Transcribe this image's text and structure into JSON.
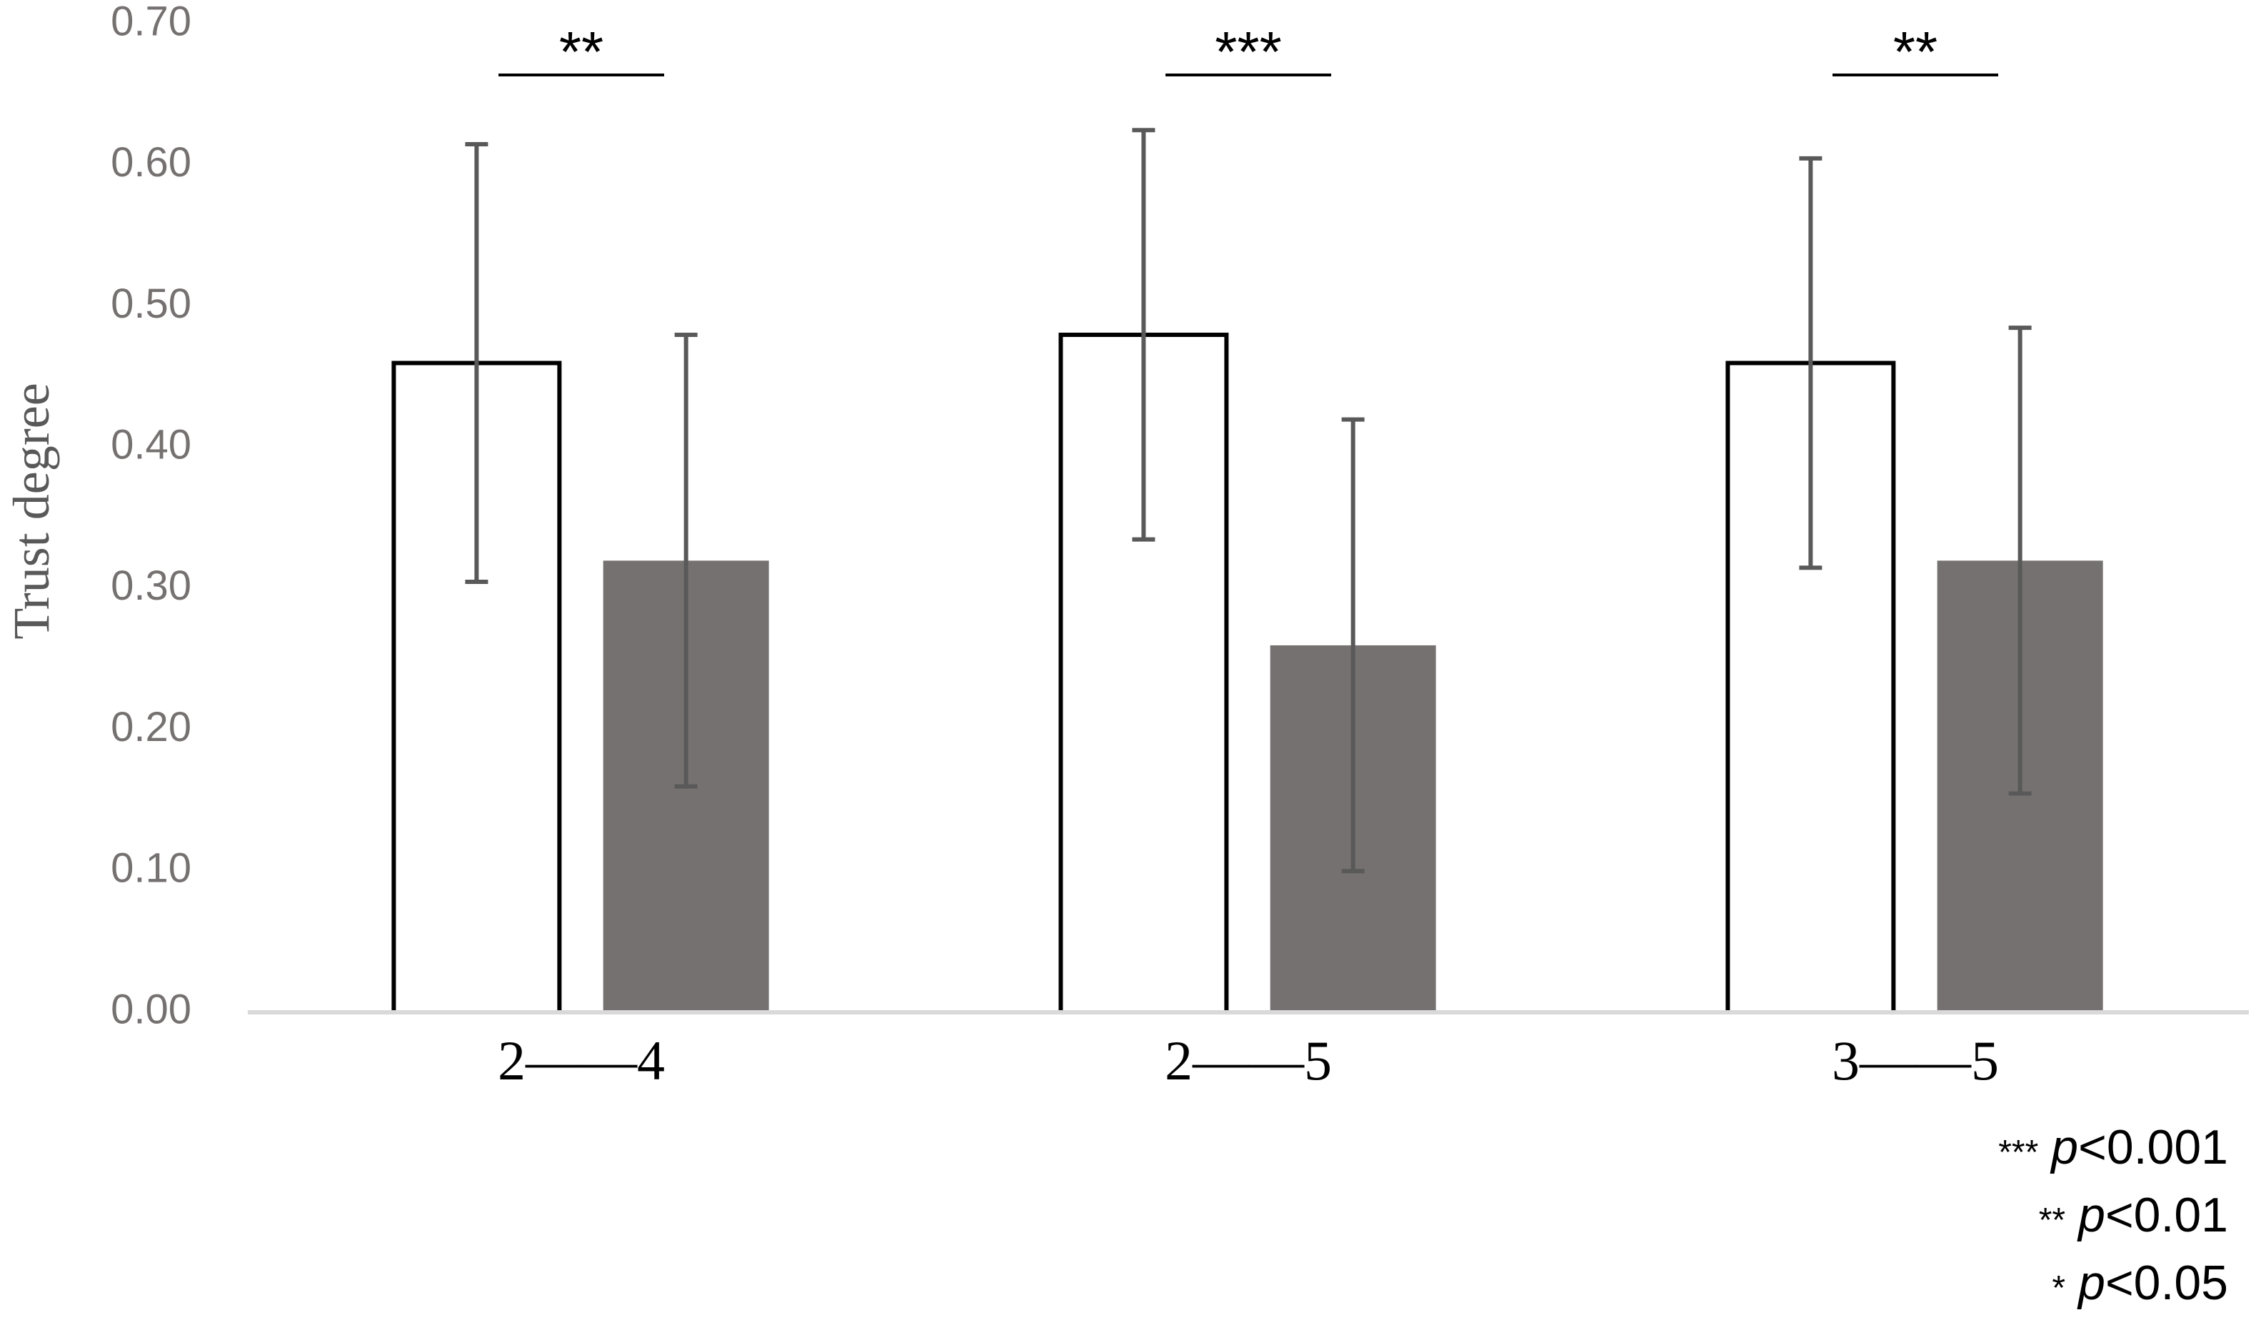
{
  "chart_data": {
    "type": "bar",
    "y_label": "Trust degree",
    "categories": [
      "2——4",
      "2——5",
      "3——5"
    ],
    "series": [
      {
        "color": "#ffffff",
        "edgecolor": "#000000",
        "values": [
          0.46,
          0.48,
          0.46
        ],
        "errors": [
          0.155,
          0.145,
          0.145
        ]
      },
      {
        "color": "#767171",
        "values": [
          0.32,
          0.26,
          0.32
        ],
        "errors": [
          0.16,
          0.16,
          0.165
        ]
      }
    ],
    "error_color": "#595959",
    "ylim": [
      0,
      0.7
    ],
    "yticks": [
      {
        "value": 0,
        "label": "0.00"
      },
      {
        "value": 0.1,
        "label": "0.10"
      },
      {
        "value": 0.2,
        "label": "0.20"
      },
      {
        "value": 0.3,
        "label": "0.30"
      },
      {
        "value": 0.4,
        "label": "0.40"
      },
      {
        "value": 0.5,
        "label": "0.50"
      },
      {
        "value": 0.6,
        "label": "0.60"
      },
      {
        "value": 0.7,
        "label": "0.70"
      }
    ],
    "grid": false,
    "significance": [
      "**",
      "***",
      "**"
    ],
    "significance_key": [
      {
        "mark": "***",
        "p": "p",
        "threshold": "<0.001"
      },
      {
        "mark": "**",
        "p": "p",
        "threshold": "<0.01"
      },
      {
        "mark": "*",
        "p": "p",
        "threshold": "<0.05"
      }
    ]
  }
}
